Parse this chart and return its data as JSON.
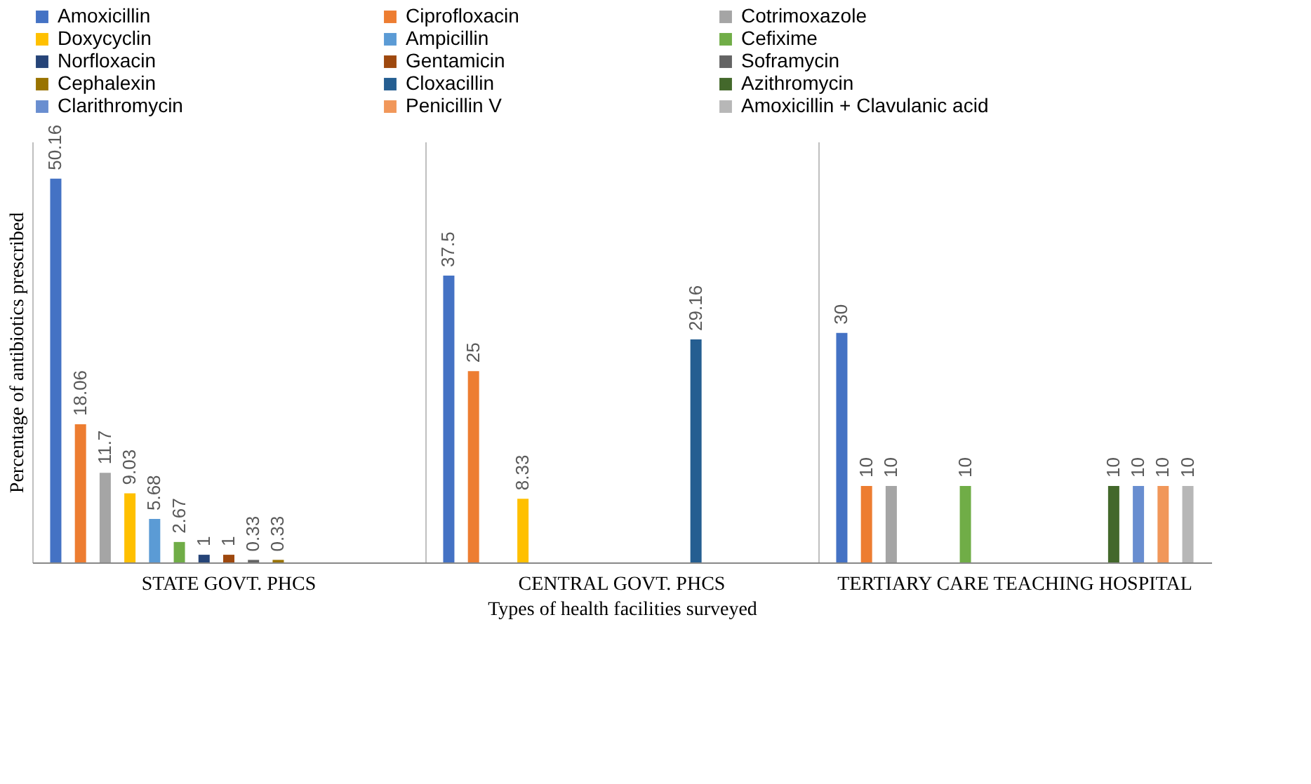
{
  "chart_data": {
    "type": "bar",
    "xlabel": "Types of health facilities surveyed",
    "ylabel": "Percentage of antibiotics prescribed",
    "categories": [
      "STATE GOVT. PHCS",
      "CENTRAL GOVT. PHCS",
      "TERTIARY CARE TEACHING HOSPITAL"
    ],
    "series": [
      {
        "name": "Amoxicillin",
        "color": "#4472c4",
        "values": [
          50.16,
          37.5,
          30
        ]
      },
      {
        "name": "Ciprofloxacin",
        "color": "#ed7d31",
        "values": [
          18.06,
          25,
          10
        ]
      },
      {
        "name": "Cotrimoxazole",
        "color": "#a5a5a5",
        "values": [
          11.7,
          null,
          10
        ]
      },
      {
        "name": "Doxycyclin",
        "color": "#ffc000",
        "values": [
          9.03,
          8.33,
          null
        ]
      },
      {
        "name": "Ampicillin",
        "color": "#5b9bd5",
        "values": [
          5.68,
          null,
          null
        ]
      },
      {
        "name": "Cefixime",
        "color": "#70ad47",
        "values": [
          2.67,
          null,
          10
        ]
      },
      {
        "name": "Norfloxacin",
        "color": "#264478",
        "values": [
          1,
          null,
          null
        ]
      },
      {
        "name": "Gentamicin",
        "color": "#9e480e",
        "values": [
          1,
          null,
          null
        ]
      },
      {
        "name": "Soframycin",
        "color": "#636363",
        "values": [
          0.33,
          null,
          null
        ]
      },
      {
        "name": "Cephalexin",
        "color": "#997300",
        "values": [
          0.33,
          null,
          null
        ]
      },
      {
        "name": "Cloxacillin",
        "color": "#255e91",
        "values": [
          null,
          29.16,
          null
        ]
      },
      {
        "name": "Azithromycin",
        "color": "#43682b",
        "values": [
          null,
          null,
          10
        ]
      },
      {
        "name": "Clarithromycin",
        "color": "#698ed0",
        "values": [
          null,
          null,
          10
        ]
      },
      {
        "name": "Penicillin V",
        "color": "#f1975a",
        "values": [
          null,
          null,
          10
        ]
      },
      {
        "name": "Amoxicillin + Clavulanic acid",
        "color": "#b7b7b7",
        "values": [
          null,
          null,
          10
        ]
      }
    ],
    "data_labels": true,
    "grid": "x",
    "legend": "top",
    "tick_labels": "x"
  }
}
